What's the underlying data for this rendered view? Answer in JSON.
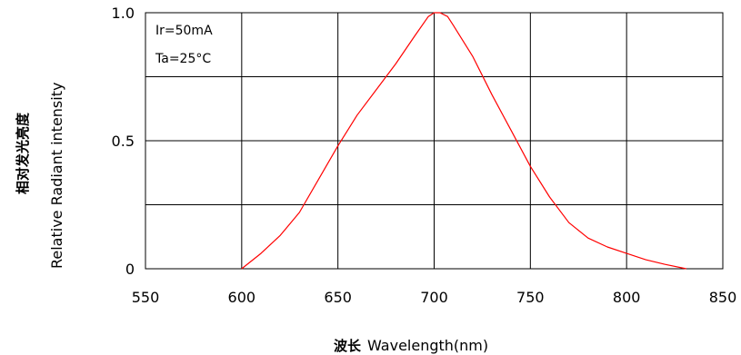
{
  "chart_data": {
    "type": "line",
    "title": "",
    "xlabel_cn": "波长",
    "xlabel": "Wavelength(nm)",
    "ylabel_cn": "相对发光亮度",
    "ylabel": "Relative Radiant intensity",
    "xlim": [
      550,
      850
    ],
    "ylim": [
      0,
      1.0
    ],
    "xticks": [
      550,
      600,
      650,
      700,
      750,
      800,
      850
    ],
    "xtick_labels": [
      "550",
      "600",
      "650",
      "700",
      "750",
      "800",
      "850"
    ],
    "yticks": [
      0,
      0.5,
      1.0
    ],
    "ytick_labels": [
      "0",
      "0.5",
      "1.0"
    ],
    "grid": true,
    "annotations": [
      "Ir=50mA",
      "Ta=25°C"
    ],
    "series": [
      {
        "color": "#ff0000",
        "x": [
          600,
          610,
          620,
          630,
          640,
          650,
          660,
          670,
          680,
          690,
          697,
          700,
          703,
          707,
          710,
          720,
          730,
          740,
          750,
          760,
          770,
          780,
          790,
          800,
          810,
          820,
          831
        ],
        "y": [
          0.0,
          0.06,
          0.13,
          0.22,
          0.35,
          0.48,
          0.6,
          0.7,
          0.8,
          0.91,
          0.985,
          1.0,
          1.0,
          0.985,
          0.95,
          0.83,
          0.68,
          0.54,
          0.4,
          0.28,
          0.18,
          0.12,
          0.085,
          0.06,
          0.035,
          0.017,
          0.0
        ]
      }
    ]
  }
}
